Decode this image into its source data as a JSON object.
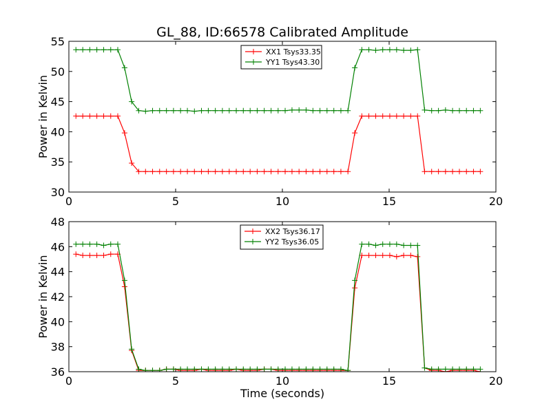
{
  "figure": {
    "title": "GL_88, ID:66578 Calibrated Amplitude"
  },
  "chart_data": [
    {
      "type": "line",
      "title": "GL_88, ID:66578 Calibrated Amplitude",
      "xlabel": "",
      "ylabel": "Power in Kelvin",
      "xlim": [
        0,
        20
      ],
      "ylim": [
        30,
        55
      ],
      "x_ticks": [
        "0",
        "5",
        "10",
        "15",
        "20"
      ],
      "y_ticks": [
        "30",
        "35",
        "40",
        "45",
        "50",
        "55"
      ],
      "legend_position": "upper-center",
      "grid": false,
      "x": [
        0.33,
        0.65,
        0.98,
        1.31,
        1.63,
        1.96,
        2.29,
        2.61,
        2.94,
        3.27,
        3.59,
        3.92,
        4.25,
        4.57,
        4.9,
        5.23,
        5.55,
        5.88,
        6.21,
        6.53,
        6.86,
        7.19,
        7.51,
        7.84,
        8.17,
        8.49,
        8.82,
        9.15,
        9.47,
        9.8,
        10.13,
        10.45,
        10.78,
        11.11,
        11.43,
        11.76,
        12.09,
        12.41,
        12.74,
        13.07,
        13.39,
        13.72,
        14.05,
        14.37,
        14.7,
        15.03,
        15.35,
        15.68,
        16.01,
        16.33,
        16.66,
        16.99,
        17.31,
        17.64,
        17.97,
        18.29,
        18.62,
        18.95,
        19.27
      ],
      "series": [
        {
          "name": "XX1 Tsys33.35",
          "color": "#ff0000",
          "values": [
            42.6,
            42.6,
            42.6,
            42.6,
            42.6,
            42.6,
            42.6,
            39.8,
            34.8,
            33.4,
            33.4,
            33.4,
            33.4,
            33.4,
            33.4,
            33.4,
            33.4,
            33.4,
            33.4,
            33.4,
            33.4,
            33.4,
            33.4,
            33.4,
            33.4,
            33.4,
            33.4,
            33.4,
            33.4,
            33.4,
            33.4,
            33.4,
            33.4,
            33.4,
            33.4,
            33.4,
            33.4,
            33.4,
            33.4,
            33.4,
            39.8,
            42.6,
            42.6,
            42.6,
            42.6,
            42.6,
            42.6,
            42.6,
            42.6,
            42.6,
            33.4,
            33.4,
            33.4,
            33.4,
            33.4,
            33.4,
            33.4,
            33.4,
            33.4
          ]
        },
        {
          "name": "YY1 Tsys43.30",
          "color": "#008000",
          "values": [
            53.6,
            53.6,
            53.6,
            53.6,
            53.6,
            53.6,
            53.6,
            50.6,
            45.0,
            43.5,
            43.4,
            43.5,
            43.5,
            43.5,
            43.5,
            43.5,
            43.5,
            43.4,
            43.5,
            43.5,
            43.5,
            43.5,
            43.5,
            43.5,
            43.5,
            43.5,
            43.5,
            43.5,
            43.5,
            43.5,
            43.5,
            43.6,
            43.6,
            43.6,
            43.5,
            43.5,
            43.5,
            43.5,
            43.5,
            43.5,
            50.6,
            53.6,
            53.6,
            53.5,
            53.6,
            53.6,
            53.6,
            53.5,
            53.5,
            53.6,
            43.6,
            43.5,
            43.5,
            43.6,
            43.5,
            43.5,
            43.5,
            43.5,
            43.5
          ]
        }
      ]
    },
    {
      "type": "line",
      "title": "",
      "xlabel": "Time (seconds)",
      "ylabel": "Power in Kelvin",
      "xlim": [
        0,
        20
      ],
      "ylim": [
        36,
        48
      ],
      "x_ticks": [
        "0",
        "5",
        "10",
        "15",
        "20"
      ],
      "y_ticks": [
        "36",
        "38",
        "40",
        "42",
        "44",
        "46",
        "48"
      ],
      "legend_position": "upper-center",
      "grid": false,
      "x": [
        0.33,
        0.65,
        0.98,
        1.31,
        1.63,
        1.96,
        2.29,
        2.61,
        2.94,
        3.27,
        3.59,
        3.92,
        4.25,
        4.57,
        4.9,
        5.23,
        5.55,
        5.88,
        6.21,
        6.53,
        6.86,
        7.19,
        7.51,
        7.84,
        8.17,
        8.49,
        8.82,
        9.15,
        9.47,
        9.8,
        10.13,
        10.45,
        10.78,
        11.11,
        11.43,
        11.76,
        12.09,
        12.41,
        12.74,
        13.07,
        13.39,
        13.72,
        14.05,
        14.37,
        14.7,
        15.03,
        15.35,
        15.68,
        16.01,
        16.33,
        16.66,
        16.99,
        17.31,
        17.64,
        17.97,
        18.29,
        18.62,
        18.95,
        19.27
      ],
      "series": [
        {
          "name": "XX2 Tsys36.17",
          "color": "#ff0000",
          "values": [
            45.4,
            45.3,
            45.3,
            45.3,
            45.3,
            45.4,
            45.4,
            42.8,
            37.7,
            36.1,
            36.1,
            36.1,
            36.1,
            36.2,
            36.2,
            36.1,
            36.1,
            36.1,
            36.2,
            36.1,
            36.1,
            36.1,
            36.1,
            36.2,
            36.1,
            36.1,
            36.1,
            36.2,
            36.2,
            36.1,
            36.1,
            36.1,
            36.1,
            36.1,
            36.1,
            36.1,
            36.1,
            36.1,
            36.1,
            36.1,
            42.7,
            45.3,
            45.3,
            45.3,
            45.3,
            45.3,
            45.2,
            45.3,
            45.3,
            45.2,
            36.3,
            36.1,
            36.1,
            36.0,
            36.1,
            36.1,
            36.1,
            36.1,
            36.0
          ]
        },
        {
          "name": "YY2 Tsys36.05",
          "color": "#008000",
          "values": [
            46.2,
            46.2,
            46.2,
            46.2,
            46.1,
            46.2,
            46.2,
            43.3,
            37.8,
            36.2,
            36.1,
            36.1,
            36.1,
            36.2,
            36.2,
            36.2,
            36.2,
            36.2,
            36.2,
            36.2,
            36.2,
            36.2,
            36.2,
            36.2,
            36.2,
            36.2,
            36.2,
            36.2,
            36.2,
            36.2,
            36.2,
            36.2,
            36.2,
            36.2,
            36.2,
            36.2,
            36.2,
            36.2,
            36.2,
            36.1,
            43.3,
            46.2,
            46.2,
            46.1,
            46.2,
            46.2,
            46.2,
            46.1,
            46.1,
            46.1,
            36.3,
            36.2,
            36.2,
            36.2,
            36.2,
            36.2,
            36.2,
            36.2,
            36.2
          ]
        }
      ]
    }
  ]
}
